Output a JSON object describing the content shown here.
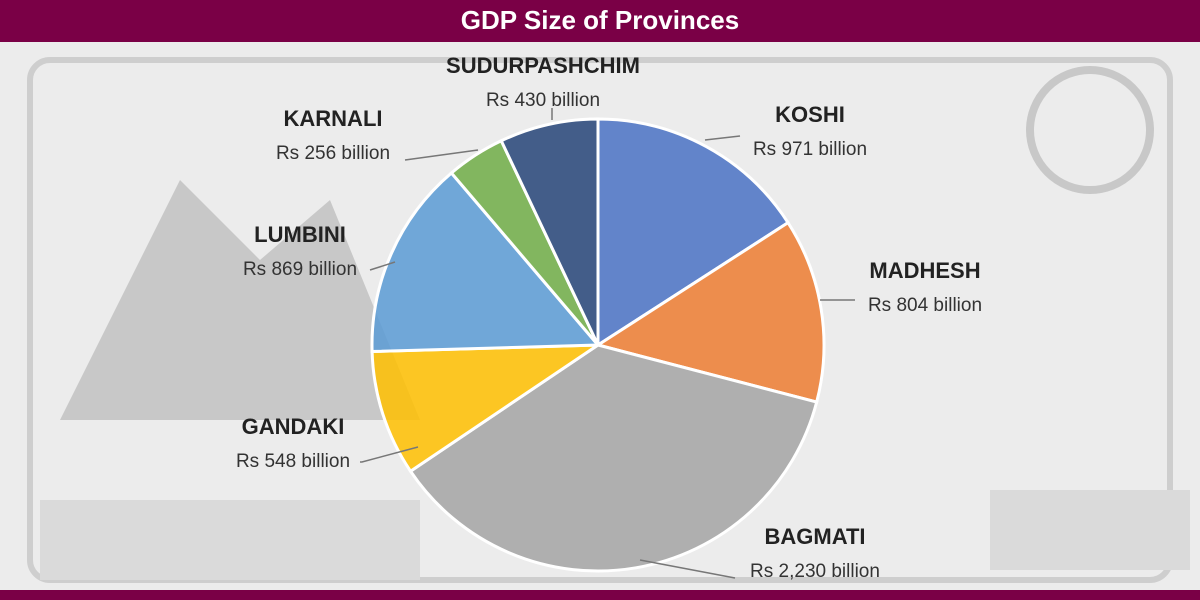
{
  "chart_data": {
    "type": "pie",
    "title": "GDP Size of Provinces",
    "categories": [
      "KOSHI",
      "MADHESH",
      "BAGMATI",
      "GANDAKI",
      "LUMBINI",
      "KARNALI",
      "SUDURPASHCHIM"
    ],
    "values": [
      971,
      804,
      2230,
      548,
      869,
      256,
      430
    ],
    "value_labels": [
      "Rs 971 billion",
      "Rs 804 billion",
      "Rs 2,230 billion",
      "Rs 548 billion",
      "Rs 869 billion",
      "Rs 256 billion",
      "Rs 430 billion"
    ],
    "colors": [
      "#4a72c4",
      "#ed7d31",
      "#a5a5a5",
      "#ffc000",
      "#5b9bd5",
      "#70ad47",
      "#264478"
    ]
  }
}
